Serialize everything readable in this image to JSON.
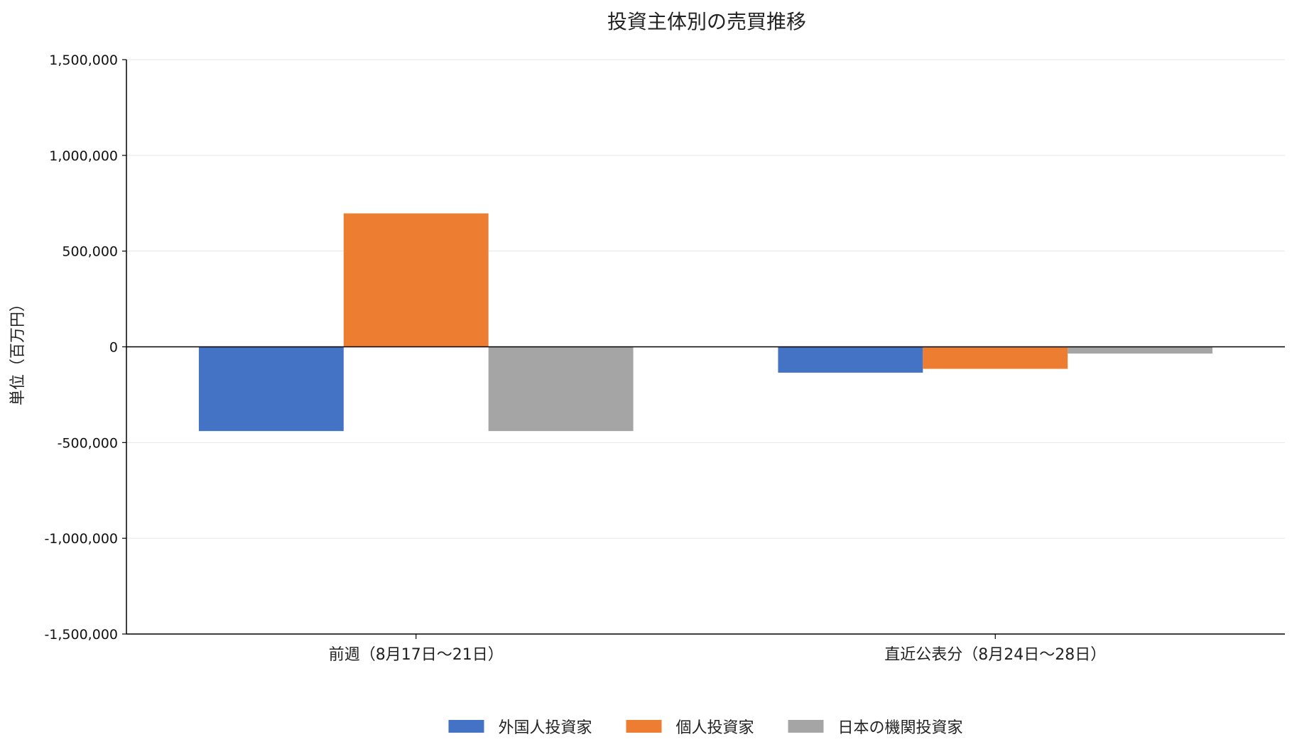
{
  "chart_data": {
    "type": "bar",
    "title": "投資主体別の売買推移",
    "ylabel": "単位（百万円）",
    "xlabel": "",
    "categories": [
      "前週（8月17日～21日）",
      "直近公表分（8月24日～28日）"
    ],
    "series": [
      {
        "name": "外国人投資家",
        "color": "#4472C4",
        "values": [
          -440000,
          -135000
        ]
      },
      {
        "name": "個人投資家",
        "color": "#ED7D31",
        "values": [
          697000,
          -115000
        ]
      },
      {
        "name": "日本の機関投資家",
        "color": "#A5A5A5",
        "values": [
          -440000,
          -35000
        ]
      }
    ],
    "ylim": [
      -1500000,
      1500000
    ],
    "yticks": [
      1500000,
      1000000,
      500000,
      0,
      -500000,
      -1000000,
      -1500000
    ],
    "ytick_labels": [
      "1,500,000",
      "1,000,000",
      "500,000",
      "0",
      "-500,000",
      "-1,000,000",
      "-1,500,000"
    ],
    "grid": true,
    "legend_position": "bottom"
  }
}
